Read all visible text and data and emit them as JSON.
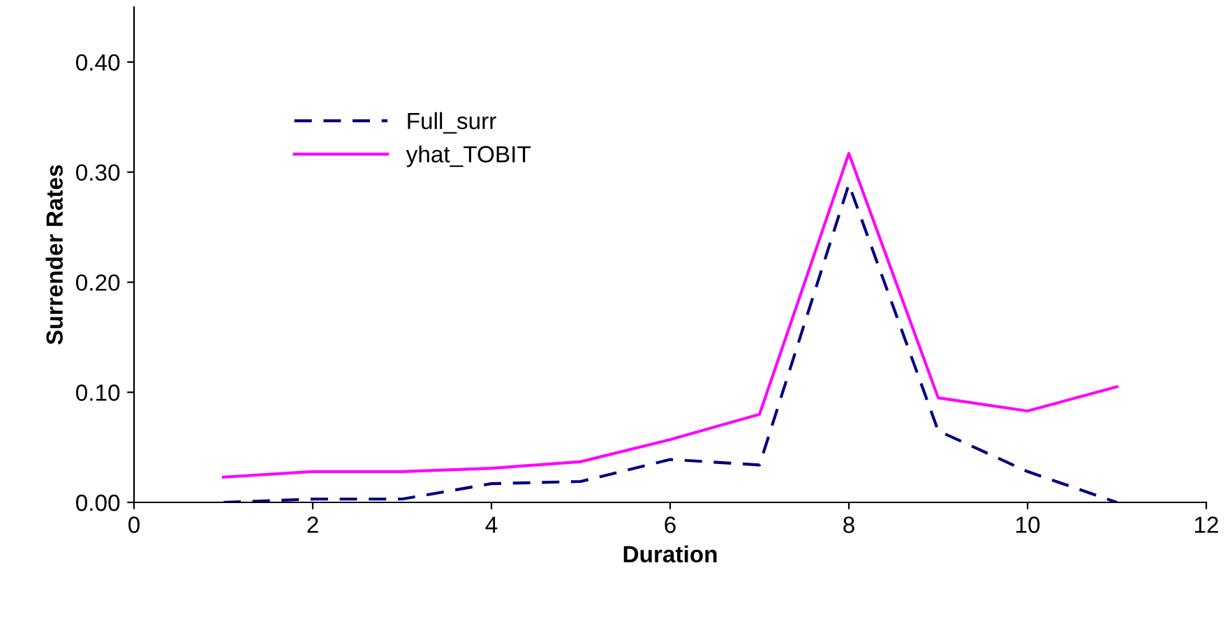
{
  "chart_data": {
    "type": "line",
    "xlabel": "Duration",
    "ylabel": "Surrender Rates",
    "x": [
      1,
      2,
      3,
      4,
      5,
      6,
      7,
      8,
      9,
      10,
      11
    ],
    "series": [
      {
        "name": "Full_surr",
        "color": "#000080",
        "line_style": "dashed",
        "values": [
          0.0,
          0.003,
          0.003,
          0.017,
          0.019,
          0.039,
          0.034,
          0.289,
          0.065,
          0.028,
          0.0
        ]
      },
      {
        "name": "yhat_TOBIT",
        "color": "#ff00ff",
        "line_style": "solid",
        "values": [
          0.023,
          0.028,
          0.028,
          0.031,
          0.037,
          0.057,
          0.08,
          0.317,
          0.095,
          0.083,
          0.105
        ]
      }
    ],
    "xlim": [
      0,
      12
    ],
    "xticks": [
      0,
      2,
      4,
      6,
      8,
      10,
      12
    ],
    "ylim": [
      0,
      0.45
    ],
    "yticks": [
      {
        "value": 0,
        "label": "0.00"
      },
      {
        "value": 0.1,
        "label": "0.10"
      },
      {
        "value": 0.2,
        "label": "0.20"
      },
      {
        "value": 0.3,
        "label": "0.30"
      },
      {
        "value": 0.4,
        "label": "0.40"
      }
    ],
    "legend": "top left",
    "grid": false,
    "marker": "none"
  }
}
